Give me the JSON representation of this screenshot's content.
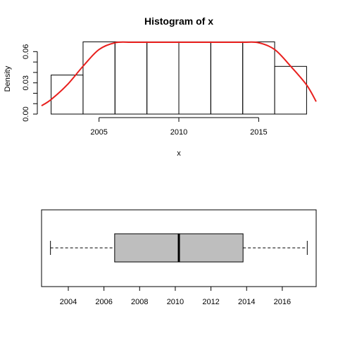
{
  "chart_data": [
    {
      "type": "histogram",
      "title": "Histogram of x",
      "xlabel": "x",
      "ylabel": "Density",
      "xlim": [
        2001.4,
        2018.6
      ],
      "ylim": [
        0,
        0.069
      ],
      "x_ticks": [
        "2005",
        "2010",
        "2015"
      ],
      "y_ticks": [
        "0.00",
        "0.03",
        "0.06"
      ],
      "bins": [
        {
          "from": 2002,
          "to": 2004,
          "density": 0.0375
        },
        {
          "from": 2004,
          "to": 2006,
          "density": 0.0694
        },
        {
          "from": 2006,
          "to": 2008,
          "density": 0.0694
        },
        {
          "from": 2008,
          "to": 2010,
          "density": 0.0694
        },
        {
          "from": 2010,
          "to": 2012,
          "density": 0.0694
        },
        {
          "from": 2012,
          "to": 2014,
          "density": 0.0694
        },
        {
          "from": 2014,
          "to": 2016,
          "density": 0.0694
        },
        {
          "from": 2016,
          "to": 2018,
          "density": 0.0458
        }
      ],
      "density_curve": {
        "color": "#e8201e",
        "x": [
          2001.4,
          2002,
          2003,
          2004,
          2005,
          2006,
          2007,
          2008,
          2010,
          2012,
          2014,
          2015,
          2016,
          2017,
          2018,
          2018.6
        ],
        "y": [
          0.008,
          0.014,
          0.028,
          0.046,
          0.062,
          0.0685,
          0.069,
          0.069,
          0.069,
          0.069,
          0.069,
          0.0685,
          0.062,
          0.046,
          0.028,
          0.012
        ]
      },
      "grid": false
    },
    {
      "type": "boxplot",
      "orientation": "horizontal",
      "xlim": [
        2002.5,
        2017.9
      ],
      "x_ticks": [
        "2004",
        "2006",
        "2008",
        "2010",
        "2012",
        "2014",
        "2016"
      ],
      "box_color": "#bebebe",
      "stats": {
        "min": 2003,
        "q1": 2006.6,
        "median": 2010.2,
        "q3": 2013.8,
        "max": 2017.4
      },
      "grid": false
    }
  ]
}
